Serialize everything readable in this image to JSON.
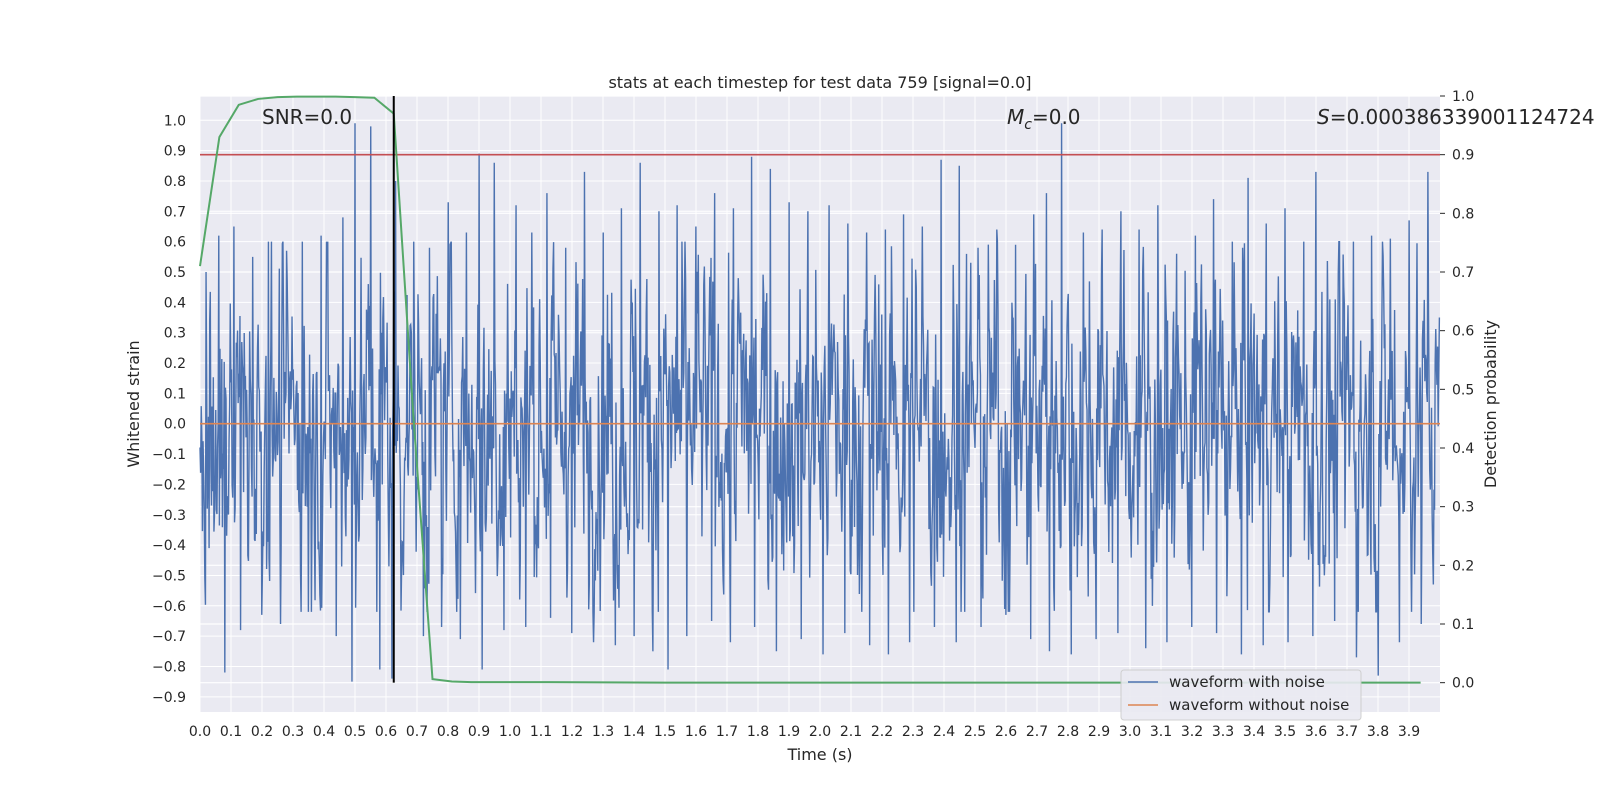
{
  "chart_data": {
    "type": "line",
    "title": "stats at each timestep for test data 759 [signal=0.0]",
    "xlabel": "Time (s)",
    "ylabel": "Whitened strain",
    "y2label": "Detection probability",
    "xlim": [
      0.0,
      4.0
    ],
    "ylim": [
      -0.95,
      1.08
    ],
    "y2lim": [
      -0.05,
      1.0
    ],
    "x_ticks": [
      "0.0",
      "0.1",
      "0.2",
      "0.3",
      "0.4",
      "0.5",
      "0.6",
      "0.7",
      "0.8",
      "0.9",
      "1.0",
      "1.1",
      "1.2",
      "1.3",
      "1.4",
      "1.5",
      "1.6",
      "1.7",
      "1.8",
      "1.9",
      "2.0",
      "2.1",
      "2.2",
      "2.3",
      "2.4",
      "2.5",
      "2.6",
      "2.7",
      "2.8",
      "2.9",
      "3.0",
      "3.1",
      "3.2",
      "3.3",
      "3.4",
      "3.5",
      "3.6",
      "3.7",
      "3.8",
      "3.9"
    ],
    "y_ticks": [
      "1.0",
      "0.9",
      "0.8",
      "0.7",
      "0.6",
      "0.5",
      "0.4",
      "0.3",
      "0.2",
      "0.1",
      "0.0",
      "-0.1",
      "-0.2",
      "-0.3",
      "-0.4",
      "-0.5",
      "-0.6",
      "-0.7",
      "-0.8",
      "-0.9"
    ],
    "y2_ticks": [
      "1.0",
      "0.9",
      "0.8",
      "0.7",
      "0.6",
      "0.5",
      "0.4",
      "0.3",
      "0.2",
      "0.1",
      "0.0"
    ],
    "annotations": {
      "snr": "SNR=0.0",
      "mc_symbol": "M",
      "mc_sub": "c",
      "mc_value": "=0.0",
      "s_symbol": "S",
      "s_value": "=0.000386339001124724"
    },
    "threshold": {
      "axis": "y2",
      "value": 0.9,
      "color": "#c44e52"
    },
    "marker_time": 0.625,
    "legend": {
      "location": "lower right",
      "entries": [
        {
          "label": "waveform with noise",
          "color": "#4c72b0"
        },
        {
          "label": "waveform without noise",
          "color": "#dd8452"
        }
      ]
    },
    "series": [
      {
        "name": "waveform with noise",
        "color": "#4c72b0",
        "kind": "noise",
        "samples": 2048,
        "approx_std": 0.27,
        "peak_times": [
          0.02,
          0.06,
          0.11,
          0.17,
          0.22,
          0.28,
          0.33,
          0.39,
          0.46,
          0.5,
          0.55,
          0.63,
          0.69,
          0.74,
          0.8,
          0.86,
          0.9,
          0.95,
          1.02,
          1.07,
          1.12,
          1.18,
          1.24,
          1.3,
          1.36,
          1.42,
          1.48,
          1.54,
          1.6,
          1.66,
          1.72,
          1.78,
          1.84,
          1.9,
          1.96,
          2.03,
          2.09,
          2.15,
          2.21,
          2.27,
          2.33,
          2.39,
          2.45,
          2.51,
          2.57,
          2.63,
          2.69,
          2.73,
          2.78,
          2.85,
          2.91,
          2.97,
          3.03,
          3.09,
          3.15,
          3.21,
          3.27,
          3.33,
          3.38,
          3.44,
          3.5,
          3.56,
          3.6,
          3.66,
          3.72,
          3.78,
          3.84,
          3.9,
          3.96
        ],
        "peak_values": [
          0.5,
          0.62,
          0.65,
          0.55,
          0.6,
          0.57,
          0.6,
          0.62,
          0.68,
          0.99,
          0.98,
          0.8,
          0.6,
          0.58,
          0.73,
          0.63,
          0.89,
          0.86,
          0.72,
          0.63,
          0.76,
          0.58,
          0.83,
          0.63,
          0.71,
          0.86,
          0.7,
          0.72,
          0.65,
          0.76,
          0.71,
          0.88,
          0.84,
          0.73,
          0.7,
          0.72,
          0.66,
          0.63,
          0.64,
          0.69,
          0.65,
          0.87,
          0.85,
          0.58,
          0.64,
          0.59,
          0.69,
          0.76,
          0.99,
          0.63,
          0.64,
          0.7,
          0.64,
          0.72,
          0.56,
          0.62,
          0.74,
          0.6,
          0.81,
          0.66,
          0.71,
          0.6,
          0.83,
          0.66,
          0.6,
          0.62,
          0.61,
          0.67,
          0.83
        ],
        "trough_times": [
          0.03,
          0.08,
          0.13,
          0.2,
          0.26,
          0.35,
          0.44,
          0.49,
          0.58,
          0.62,
          0.72,
          0.78,
          0.84,
          0.91,
          0.98,
          1.05,
          1.13,
          1.2,
          1.27,
          1.34,
          1.4,
          1.46,
          1.51,
          1.57,
          1.65,
          1.71,
          1.79,
          1.86,
          1.94,
          2.01,
          2.08,
          2.16,
          2.22,
          2.29,
          2.37,
          2.44,
          2.52,
          2.6,
          2.68,
          2.74,
          2.81,
          2.89,
          2.96,
          3.05,
          3.12,
          3.2,
          3.28,
          3.36,
          3.43,
          3.51,
          3.59,
          3.66,
          3.73,
          3.8,
          3.87,
          3.94
        ],
        "trough_values": [
          -0.41,
          -0.82,
          -0.68,
          -0.63,
          -0.66,
          -0.62,
          -0.7,
          -0.85,
          -0.81,
          -0.84,
          -0.7,
          -0.67,
          -0.71,
          -0.81,
          -0.68,
          -0.67,
          -0.64,
          -0.69,
          -0.72,
          -0.73,
          -0.7,
          -0.75,
          -0.81,
          -0.7,
          -0.65,
          -0.72,
          -0.67,
          -0.75,
          -0.71,
          -0.76,
          -0.69,
          -0.73,
          -0.76,
          -0.72,
          -0.67,
          -0.72,
          -0.67,
          -0.63,
          -0.71,
          -0.75,
          -0.76,
          -0.71,
          -0.69,
          -0.74,
          -0.72,
          -0.67,
          -0.69,
          -0.76,
          -0.73,
          -0.72,
          -0.7,
          -0.65,
          -0.77,
          -0.83,
          -0.72,
          -0.66
        ]
      },
      {
        "name": "waveform without noise",
        "color": "#dd8452",
        "x": [
          0.0,
          4.0
        ],
        "y": [
          0.0,
          0.0
        ]
      },
      {
        "name": "Detection probability",
        "axis": "y2",
        "color": "#55a868",
        "x": [
          0.0,
          0.0625,
          0.125,
          0.1875,
          0.25,
          0.3125,
          0.375,
          0.4375,
          0.5,
          0.5625,
          0.625,
          0.6875,
          0.75,
          0.8125,
          0.875,
          0.9375,
          1.0,
          1.0625,
          1.125,
          1.5,
          2.0,
          2.5,
          3.0,
          3.5,
          3.9375
        ],
        "y": [
          0.71,
          0.93,
          0.985,
          0.995,
          0.998,
          0.999,
          0.999,
          0.999,
          0.998,
          0.997,
          0.97,
          0.46,
          0.006,
          0.002,
          0.001,
          0.001,
          0.001,
          0.001,
          0.001,
          0.0,
          0.0,
          0.0,
          0.0,
          0.0,
          0.0
        ]
      }
    ]
  }
}
